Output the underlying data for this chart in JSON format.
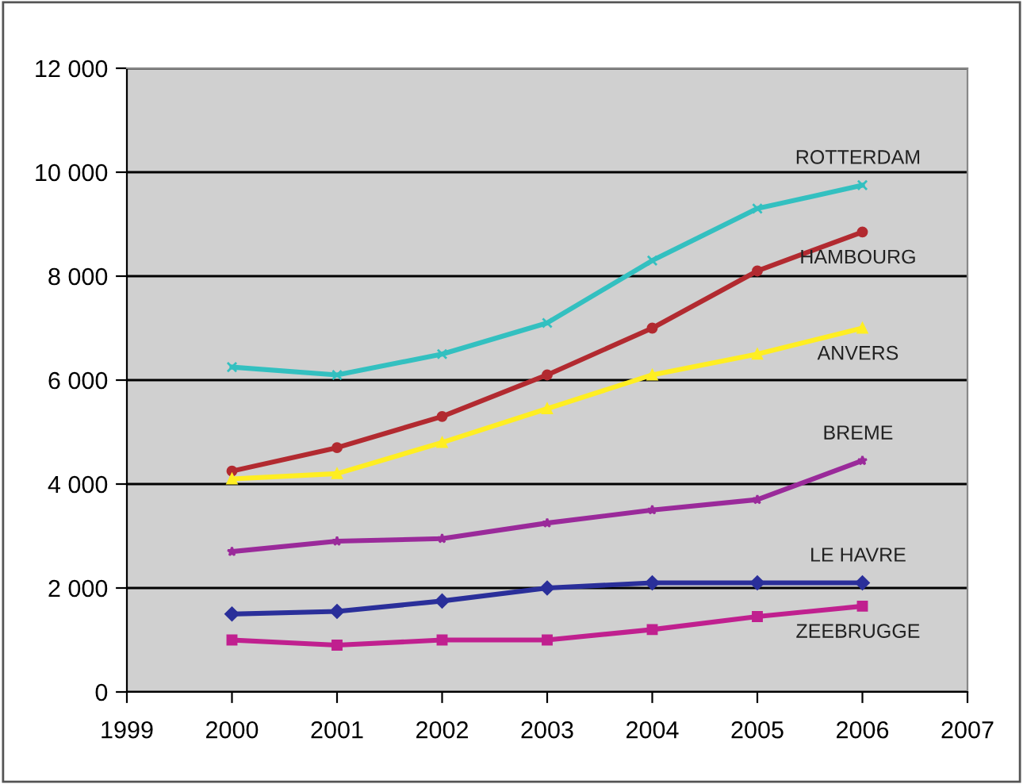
{
  "chart_data": {
    "type": "line",
    "x": [
      2000,
      2001,
      2002,
      2003,
      2004,
      2005,
      2006
    ],
    "xlim": [
      1999,
      2007
    ],
    "xticks": [
      1999,
      2000,
      2001,
      2002,
      2003,
      2004,
      2005,
      2006,
      2007
    ],
    "ylim": [
      0,
      12000
    ],
    "yticks": [
      {
        "value": 0,
        "label": "0"
      },
      {
        "value": 2000,
        "label": "2 000"
      },
      {
        "value": 4000,
        "label": "4 000"
      },
      {
        "value": 6000,
        "label": "6 000"
      },
      {
        "value": 8000,
        "label": "8 000"
      },
      {
        "value": 10000,
        "label": "10 000"
      },
      {
        "value": 12000,
        "label": "12 000"
      }
    ],
    "grid": "y",
    "legend": false,
    "line_style": "solid",
    "series": [
      {
        "name": "ROTTERDAM",
        "color": "#33c0c0",
        "marker": "cross",
        "values": [
          6250,
          6100,
          6500,
          7100,
          8300,
          9300,
          9750
        ]
      },
      {
        "name": "HAMBOURG",
        "color": "#b22a30",
        "marker": "circle",
        "values": [
          4250,
          4700,
          5300,
          6100,
          7000,
          8100,
          8850
        ]
      },
      {
        "name": "ANVERS",
        "color": "#ffee22",
        "marker": "triangle",
        "values": [
          4100,
          4200,
          4800,
          5450,
          6100,
          6500,
          7000
        ]
      },
      {
        "name": "BREME",
        "color": "#9a2a9a",
        "marker": "star",
        "values": [
          2700,
          2900,
          2950,
          3250,
          3500,
          3700,
          4450
        ]
      },
      {
        "name": "LE HAVRE",
        "color": "#2a2f9a",
        "marker": "diamond",
        "values": [
          1500,
          1550,
          1750,
          2000,
          2100,
          2100,
          2100
        ]
      },
      {
        "name": "ZEEBRUGGE",
        "color": "#c0208f",
        "marker": "square",
        "values": [
          1000,
          900,
          1000,
          1000,
          1200,
          1450,
          1650
        ]
      }
    ]
  }
}
